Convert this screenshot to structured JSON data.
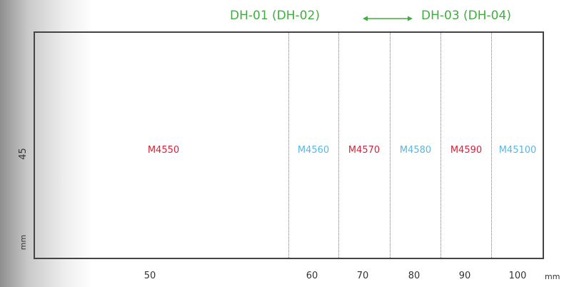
{
  "header": {
    "left_label": "DH-01 (DH-02)",
    "right_label": "DH-03 (DH-04)",
    "color": "#3fae3f"
  },
  "height_axis": {
    "value": "45",
    "unit": "mm"
  },
  "width_axis": {
    "ticks": [
      "50",
      "60",
      "70",
      "80",
      "90",
      "100"
    ],
    "unit": "mm"
  },
  "sizes": [
    {
      "label": "M4550",
      "color": "#d0243a"
    },
    {
      "label": "M4560",
      "color": "#5ab6e0"
    },
    {
      "label": "M4570",
      "color": "#d0243a"
    },
    {
      "label": "M4580",
      "color": "#5ab6e0"
    },
    {
      "label": "M4590",
      "color": "#d0243a"
    },
    {
      "label": "M45100",
      "color": "#5ab6e0"
    }
  ]
}
